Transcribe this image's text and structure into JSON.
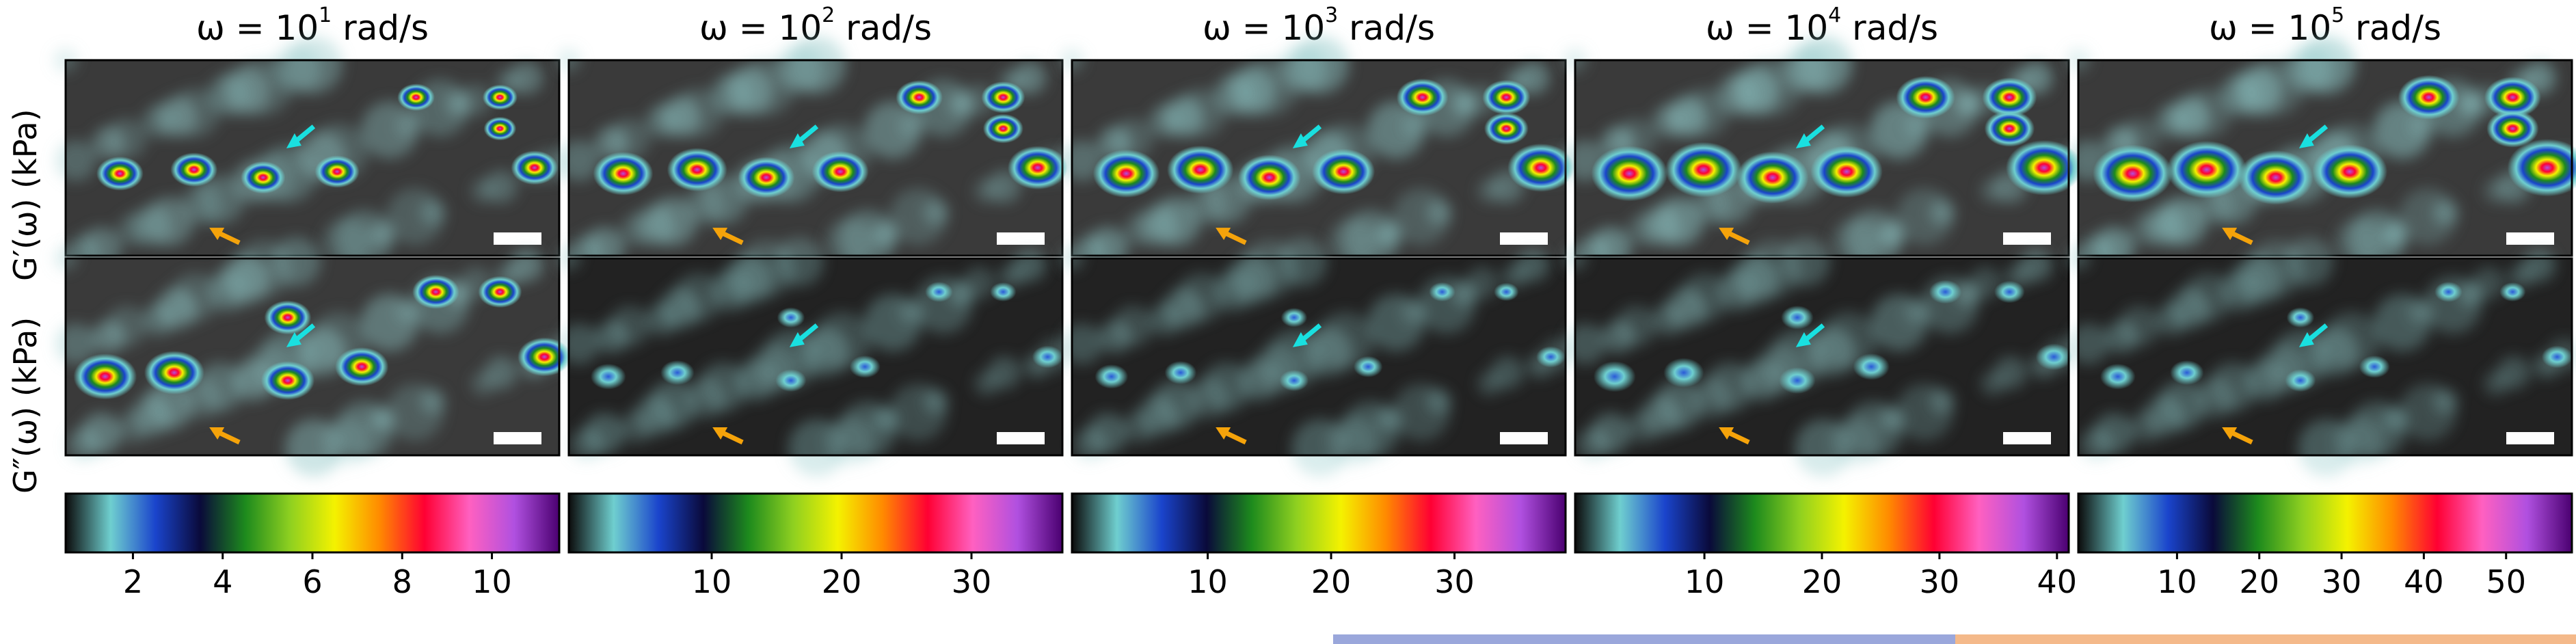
{
  "row_labels": {
    "top": "G′(ω) (kPa)",
    "bottom": "G″(ω) (kPa)"
  },
  "columns": [
    {
      "title_pre": "ω = 10",
      "title_exp": "1",
      "title_post": " rad/s",
      "ticks": [
        "2",
        "4",
        "6",
        "8",
        "10"
      ],
      "tick_values": [
        2,
        4,
        6,
        8,
        10
      ],
      "range": [
        0.5,
        11.5
      ]
    },
    {
      "title_pre": "ω = 10",
      "title_exp": "2",
      "title_post": " rad/s",
      "ticks": [
        "10",
        "20",
        "30"
      ],
      "tick_values": [
        10,
        20,
        30
      ],
      "range": [
        -1,
        37
      ]
    },
    {
      "title_pre": "ω = 10",
      "title_exp": "3",
      "title_post": " rad/s",
      "ticks": [
        "10",
        "20",
        "30"
      ],
      "tick_values": [
        10,
        20,
        30
      ],
      "range": [
        -1,
        39
      ]
    },
    {
      "title_pre": "ω = 10",
      "title_exp": "4",
      "title_post": " rad/s",
      "ticks": [
        "10",
        "20",
        "30",
        "40"
      ],
      "tick_values": [
        10,
        20,
        30,
        40
      ],
      "range": [
        -1,
        41
      ]
    },
    {
      "title_pre": "ω = 10",
      "title_exp": "5",
      "title_post": " rad/s",
      "ticks": [
        "10",
        "20",
        "30",
        "40",
        "50"
      ],
      "tick_values": [
        10,
        20,
        30,
        40,
        50
      ],
      "range": [
        -2,
        58
      ]
    }
  ],
  "colormap": [
    "#0b0b0b",
    "#6fcfcf",
    "#1a44cc",
    "#0a0a3a",
    "#1d8a1d",
    "#8fd020",
    "#f4f200",
    "#ff8a00",
    "#ff0033",
    "#ff60c0",
    "#b050e0",
    "#4a0070"
  ],
  "arrow_colors": {
    "cyan": "#19e0e0",
    "orange": "#f5a30a"
  }
}
